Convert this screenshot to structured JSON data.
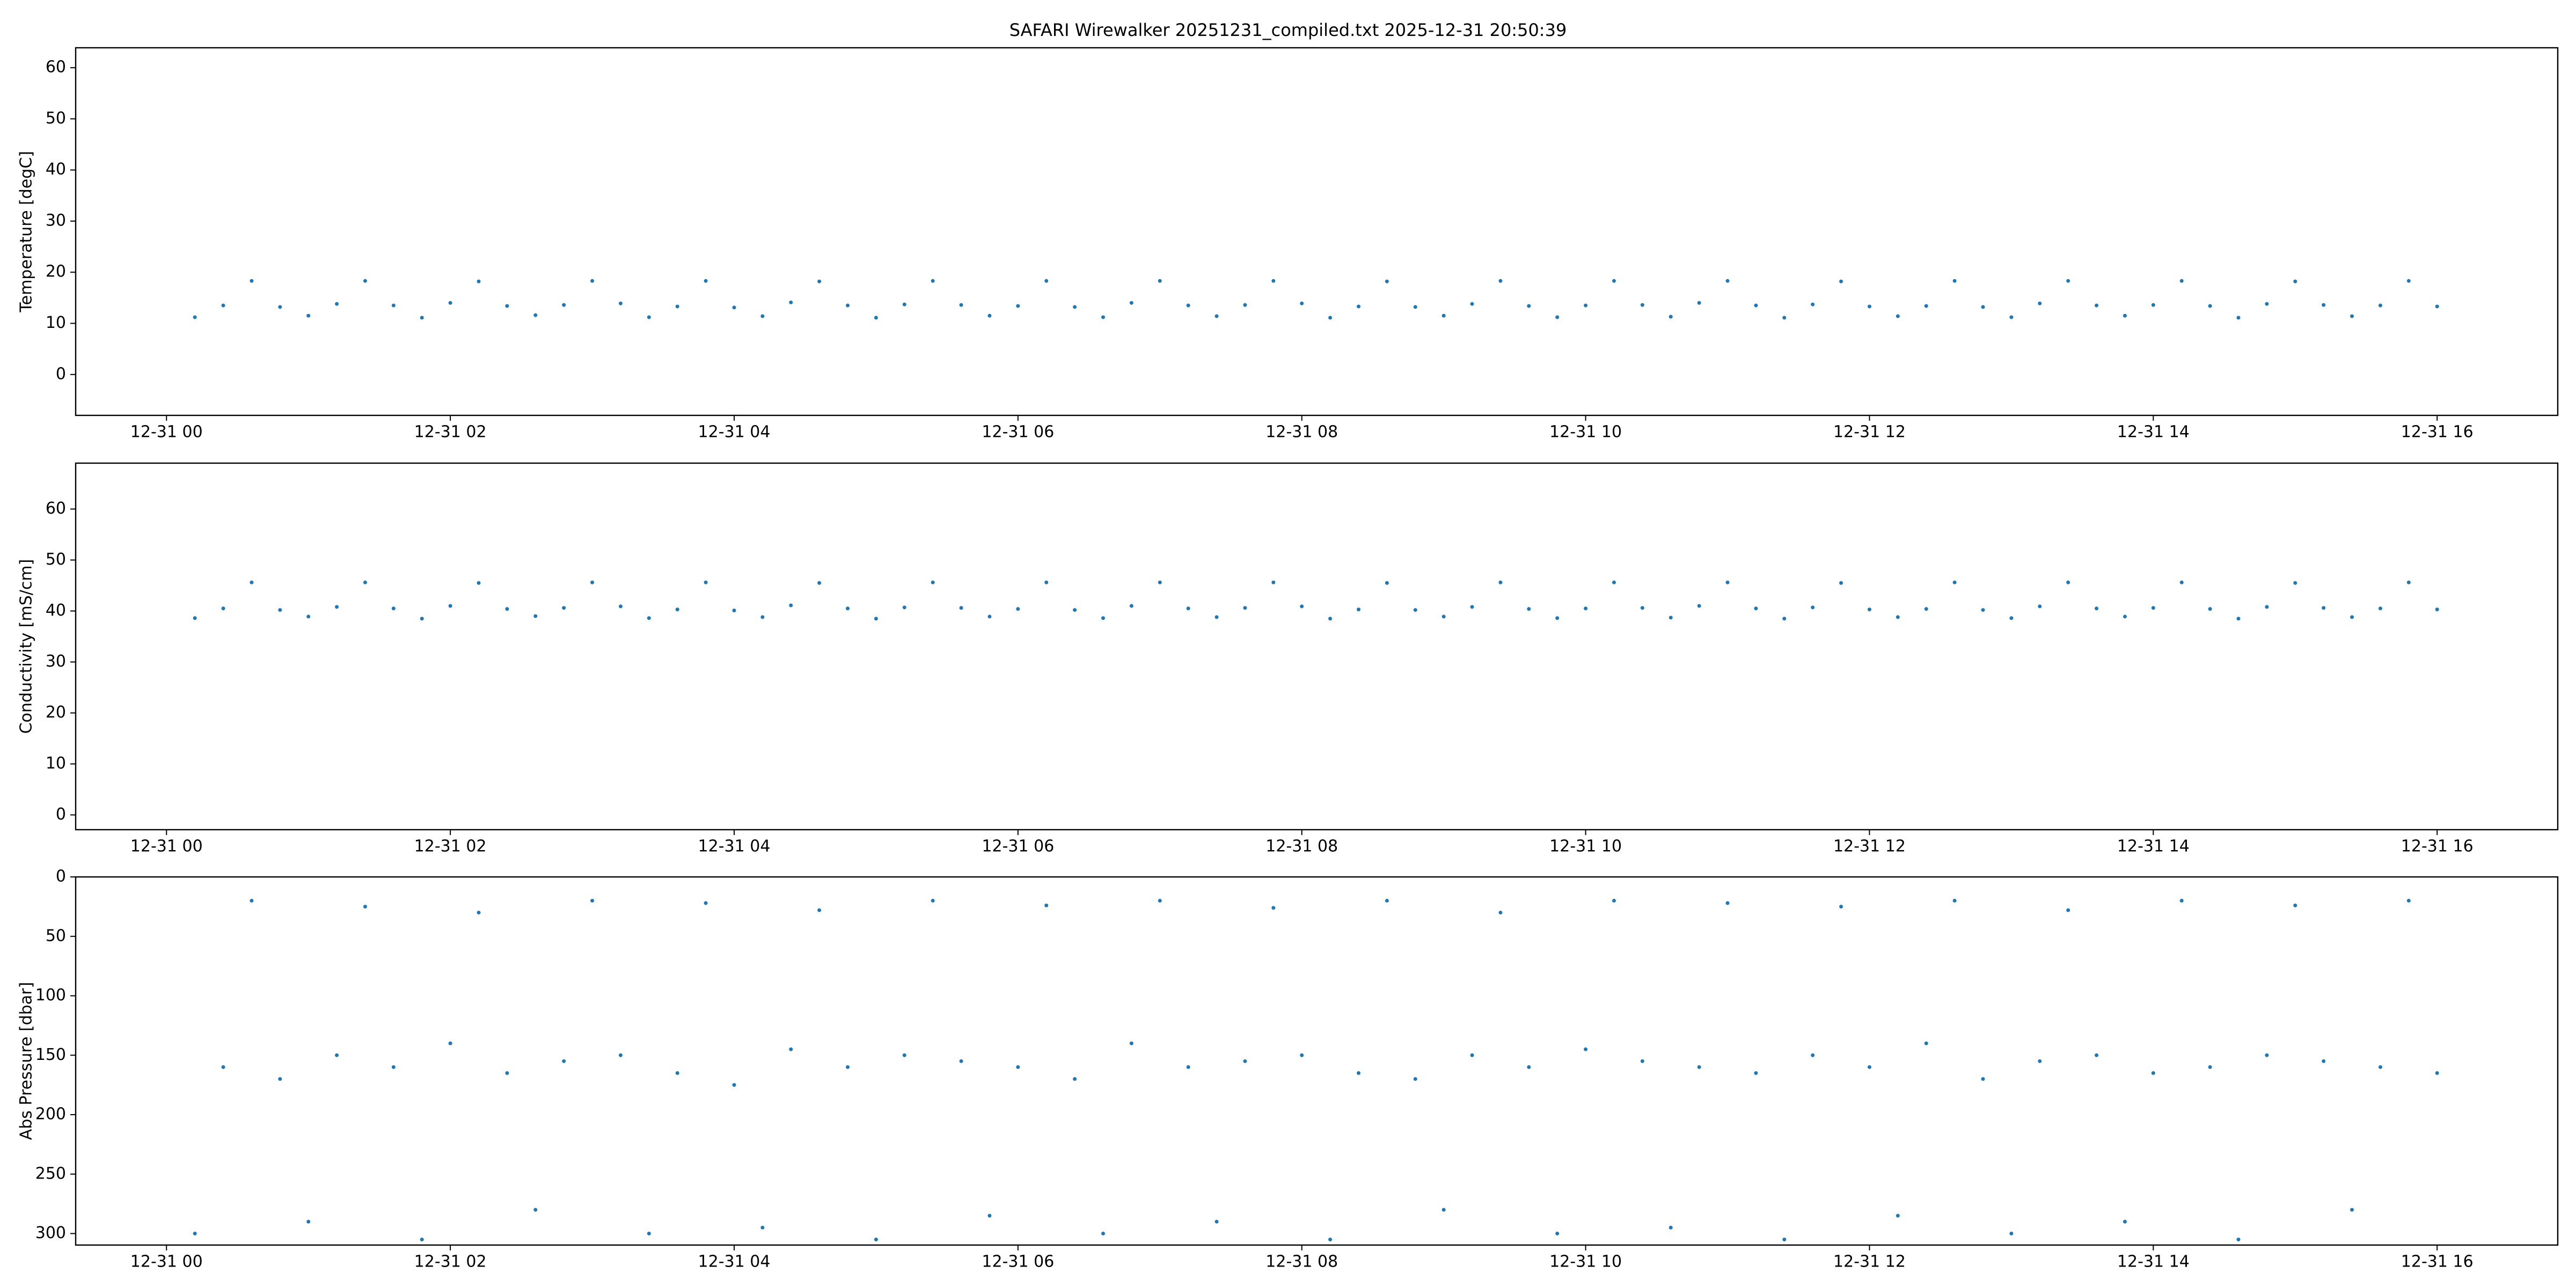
{
  "chart_data": [
    {
      "type": "scatter",
      "title": "SAFARI Wirewalker 20251231_compiled.txt 2025-12-31 20:50:39",
      "ylabel": "Temperature [degC]",
      "color": "#1f77b4",
      "grid": false,
      "xlim": [
        -0.64,
        16.85
      ],
      "ylim": [
        -8,
        63.9
      ],
      "xticks": [
        {
          "value": 0,
          "label": "12-31 00"
        },
        {
          "value": 2,
          "label": "12-31 02"
        },
        {
          "value": 4,
          "label": "12-31 04"
        },
        {
          "value": 6,
          "label": "12-31 06"
        },
        {
          "value": 8,
          "label": "12-31 08"
        },
        {
          "value": 10,
          "label": "12-31 10"
        },
        {
          "value": 12,
          "label": "12-31 12"
        },
        {
          "value": 14,
          "label": "12-31 14"
        },
        {
          "value": 16,
          "label": "12-31 16"
        }
      ],
      "yticks": [
        0,
        10,
        20,
        30,
        40,
        50,
        60
      ],
      "x": [
        0.2,
        0.4,
        0.6,
        0.8,
        1.0,
        1.2,
        1.4,
        1.6,
        1.8,
        2.0,
        2.2,
        2.4,
        2.6,
        2.8,
        3.0,
        3.2,
        3.4,
        3.6,
        3.8,
        4.0,
        4.2,
        4.4,
        4.6,
        4.8,
        5.0,
        5.2,
        5.4,
        5.6,
        5.8,
        6.0,
        6.2,
        6.4,
        6.6,
        6.8,
        7.0,
        7.2,
        7.4,
        7.6,
        7.8,
        8.0,
        8.2,
        8.4,
        8.6,
        8.8,
        9.0,
        9.2,
        9.4,
        9.6,
        9.8,
        10.0,
        10.2,
        10.4,
        10.6,
        10.8,
        11.0,
        11.2,
        11.4,
        11.6,
        11.8,
        12.0,
        12.2,
        12.4,
        12.6,
        12.8,
        13.0,
        13.2,
        13.4,
        13.6,
        13.8,
        14.0,
        14.2,
        14.4,
        14.6,
        14.8,
        15.0,
        15.2,
        15.4,
        15.6,
        15.8,
        16.0
      ],
      "values": [
        11.2,
        13.5,
        18.3,
        13.2,
        11.5,
        13.8,
        18.3,
        13.5,
        11.1,
        14.0,
        18.2,
        13.4,
        11.6,
        13.6,
        18.3,
        13.9,
        11.2,
        13.3,
        18.3,
        13.1,
        11.4,
        14.1,
        18.2,
        13.5,
        11.1,
        13.7,
        18.3,
        13.6,
        11.5,
        13.4,
        18.3,
        13.2,
        11.2,
        14.0,
        18.3,
        13.5,
        11.4,
        13.6,
        18.3,
        13.9,
        11.1,
        13.3,
        18.2,
        13.2,
        11.5,
        13.8,
        18.3,
        13.4,
        11.2,
        13.5,
        18.3,
        13.6,
        11.3,
        14.0,
        18.3,
        13.5,
        11.1,
        13.7,
        18.2,
        13.3,
        11.4,
        13.4,
        18.3,
        13.2,
        11.2,
        13.9,
        18.3,
        13.5,
        11.5,
        13.6,
        18.3,
        13.4,
        11.1,
        13.8,
        18.2,
        13.6,
        11.4,
        13.5,
        18.3,
        13.3
      ]
    },
    {
      "type": "scatter",
      "ylabel": "Conductivity [mS/cm]",
      "color": "#1f77b4",
      "grid": false,
      "xlim": [
        -0.64,
        16.85
      ],
      "ylim": [
        -2.9,
        69
      ],
      "xticks": [
        {
          "value": 0,
          "label": "12-31 00"
        },
        {
          "value": 2,
          "label": "12-31 02"
        },
        {
          "value": 4,
          "label": "12-31 04"
        },
        {
          "value": 6,
          "label": "12-31 06"
        },
        {
          "value": 8,
          "label": "12-31 08"
        },
        {
          "value": 10,
          "label": "12-31 10"
        },
        {
          "value": 12,
          "label": "12-31 12"
        },
        {
          "value": 14,
          "label": "12-31 14"
        },
        {
          "value": 16,
          "label": "12-31 16"
        }
      ],
      "yticks": [
        0,
        10,
        20,
        30,
        40,
        50,
        60
      ],
      "x": [
        0.2,
        0.4,
        0.6,
        0.8,
        1.0,
        1.2,
        1.4,
        1.6,
        1.8,
        2.0,
        2.2,
        2.4,
        2.6,
        2.8,
        3.0,
        3.2,
        3.4,
        3.6,
        3.8,
        4.0,
        4.2,
        4.4,
        4.6,
        4.8,
        5.0,
        5.2,
        5.4,
        5.6,
        5.8,
        6.0,
        6.2,
        6.4,
        6.6,
        6.8,
        7.0,
        7.2,
        7.4,
        7.6,
        7.8,
        8.0,
        8.2,
        8.4,
        8.6,
        8.8,
        9.0,
        9.2,
        9.4,
        9.6,
        9.8,
        10.0,
        10.2,
        10.4,
        10.6,
        10.8,
        11.0,
        11.2,
        11.4,
        11.6,
        11.8,
        12.0,
        12.2,
        12.4,
        12.6,
        12.8,
        13.0,
        13.2,
        13.4,
        13.6,
        13.8,
        14.0,
        14.2,
        14.4,
        14.6,
        14.8,
        15.0,
        15.2,
        15.4,
        15.6,
        15.8,
        16.0
      ],
      "values": [
        38.6,
        40.5,
        45.6,
        40.2,
        38.9,
        40.8,
        45.6,
        40.5,
        38.5,
        41.0,
        45.5,
        40.4,
        39.0,
        40.6,
        45.6,
        40.9,
        38.6,
        40.3,
        45.6,
        40.1,
        38.8,
        41.1,
        45.5,
        40.5,
        38.5,
        40.7,
        45.6,
        40.6,
        38.9,
        40.4,
        45.6,
        40.2,
        38.6,
        41.0,
        45.6,
        40.5,
        38.8,
        40.6,
        45.6,
        40.9,
        38.5,
        40.3,
        45.5,
        40.2,
        38.9,
        40.8,
        45.6,
        40.4,
        38.6,
        40.5,
        45.6,
        40.6,
        38.7,
        41.0,
        45.6,
        40.5,
        38.5,
        40.7,
        45.5,
        40.3,
        38.8,
        40.4,
        45.6,
        40.2,
        38.6,
        40.9,
        45.6,
        40.5,
        38.9,
        40.6,
        45.6,
        40.4,
        38.5,
        40.8,
        45.5,
        40.6,
        38.8,
        40.5,
        45.6,
        40.3
      ]
    },
    {
      "type": "scatter",
      "ylabel": "Abs Pressure [dbar]",
      "color": "#1f77b4",
      "grid": false,
      "xlim": [
        -0.64,
        16.85
      ],
      "ylim": [
        309.7,
        0
      ],
      "xticks": [
        {
          "value": 0,
          "label": "12-31 00"
        },
        {
          "value": 2,
          "label": "12-31 02"
        },
        {
          "value": 4,
          "label": "12-31 04"
        },
        {
          "value": 6,
          "label": "12-31 06"
        },
        {
          "value": 8,
          "label": "12-31 08"
        },
        {
          "value": 10,
          "label": "12-31 10"
        },
        {
          "value": 12,
          "label": "12-31 12"
        },
        {
          "value": 14,
          "label": "12-31 14"
        },
        {
          "value": 16,
          "label": "12-31 16"
        }
      ],
      "yticks": [
        0,
        50,
        100,
        150,
        200,
        250,
        300
      ],
      "x": [
        0.2,
        0.4,
        0.6,
        0.8,
        1.0,
        1.2,
        1.4,
        1.6,
        1.8,
        2.0,
        2.2,
        2.4,
        2.6,
        2.8,
        3.0,
        3.2,
        3.4,
        3.6,
        3.8,
        4.0,
        4.2,
        4.4,
        4.6,
        4.8,
        5.0,
        5.2,
        5.4,
        5.6,
        5.8,
        6.0,
        6.2,
        6.4,
        6.6,
        6.8,
        7.0,
        7.2,
        7.4,
        7.6,
        7.8,
        8.0,
        8.2,
        8.4,
        8.6,
        8.8,
        9.0,
        9.2,
        9.4,
        9.6,
        9.8,
        10.0,
        10.2,
        10.4,
        10.6,
        10.8,
        11.0,
        11.2,
        11.4,
        11.6,
        11.8,
        12.0,
        12.2,
        12.4,
        12.6,
        12.8,
        13.0,
        13.2,
        13.4,
        13.6,
        13.8,
        14.0,
        14.2,
        14.4,
        14.6,
        14.8,
        15.0,
        15.2,
        15.4,
        15.6,
        15.8,
        16.0
      ],
      "values": [
        300,
        160,
        20,
        170,
        290,
        150,
        25,
        160,
        305,
        140,
        30,
        165,
        280,
        155,
        20,
        150,
        300,
        165,
        22,
        175,
        295,
        145,
        28,
        160,
        305,
        150,
        20,
        155,
        285,
        160,
        24,
        170,
        300,
        140,
        20,
        160,
        290,
        155,
        26,
        150,
        305,
        165,
        20,
        170,
        280,
        150,
        30,
        160,
        300,
        145,
        20,
        155,
        295,
        160,
        22,
        165,
        305,
        150,
        25,
        160,
        285,
        140,
        20,
        170,
        300,
        155,
        28,
        150,
        290,
        165,
        20,
        160,
        305,
        150,
        24,
        155,
        280,
        160,
        20,
        165
      ]
    }
  ]
}
